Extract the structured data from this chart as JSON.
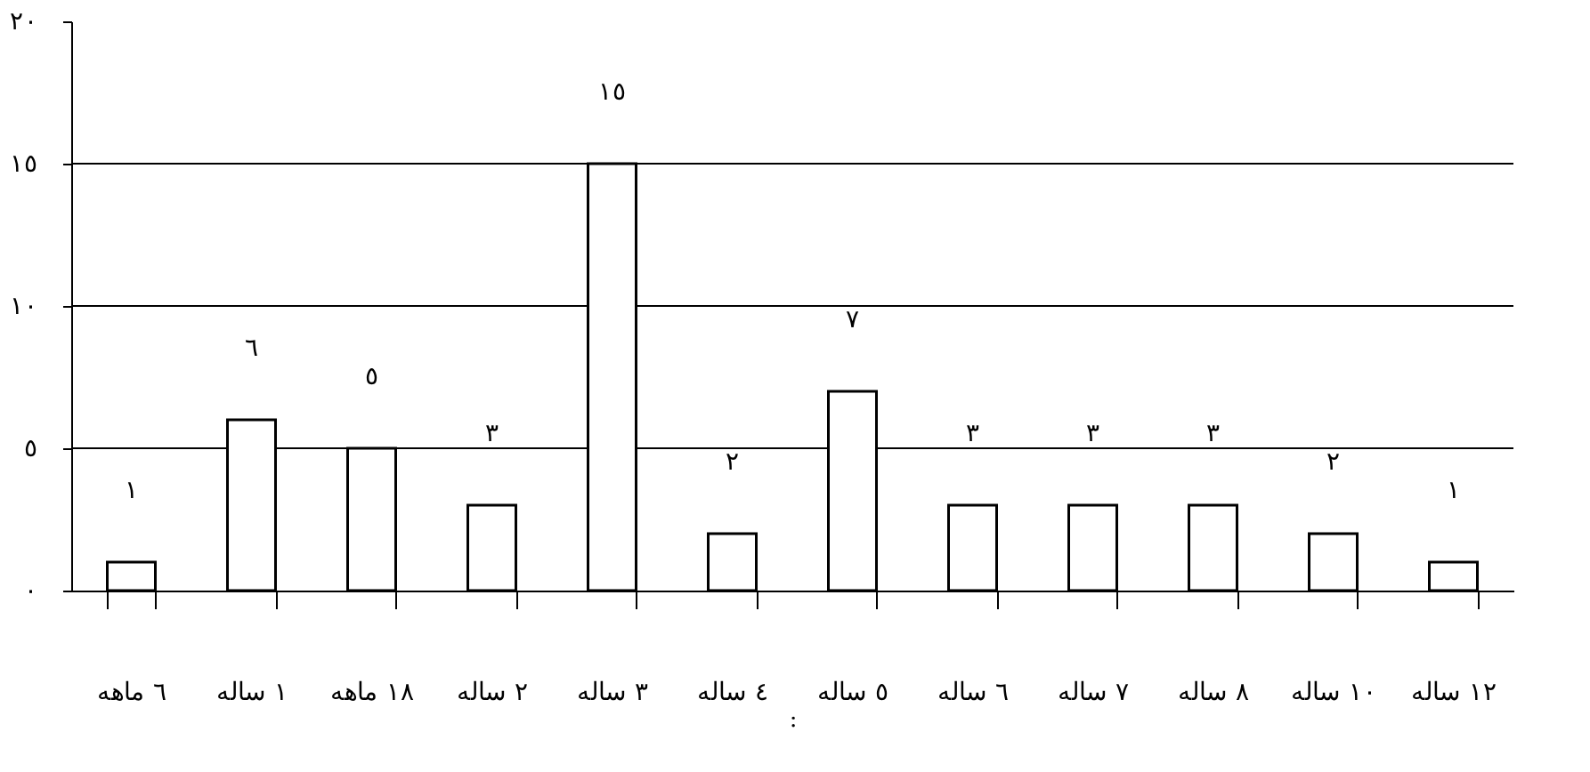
{
  "chart_data": {
    "type": "bar",
    "xlabel": ":",
    "categories": [
      "٦ ماهه",
      "١ ساله",
      "١٨ ماهه",
      "٢ ساله",
      "٣ ساله",
      "٤ ساله",
      "٥ ساله",
      "٦ ساله",
      "٧ ساله",
      "٨ ساله",
      "١٠ ساله",
      "١٢ ساله"
    ],
    "values": [
      1,
      6,
      5,
      3,
      15,
      2,
      7,
      3,
      3,
      3,
      2,
      1
    ],
    "value_labels": [
      "١",
      "٦",
      "٥",
      "٣",
      "١٥",
      "٢",
      "٧",
      "٣",
      "٣",
      "٣",
      "٢",
      "١"
    ],
    "color": "#ffffff",
    "ylim": [
      0,
      20
    ],
    "yticks": [
      {
        "value": 0,
        "label": "٠"
      },
      {
        "value": 5,
        "label": "٥"
      },
      {
        "value": 10,
        "label": "١٠"
      },
      {
        "value": 15,
        "label": "١٥"
      },
      {
        "value": 20,
        "label": "٢٠"
      }
    ],
    "grid": "y"
  }
}
